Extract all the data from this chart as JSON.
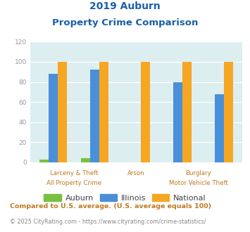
{
  "title_line1": "2019 Auburn",
  "title_line2": "Property Crime Comparison",
  "categories": [
    "All Property Crime",
    "Larceny & Theft",
    "Arson",
    "Burglary",
    "Motor Vehicle Theft"
  ],
  "auburn": [
    3,
    4,
    0,
    0,
    0
  ],
  "illinois": [
    88,
    92,
    0,
    80,
    68
  ],
  "national": [
    100,
    100,
    100,
    100,
    100
  ],
  "auburn_color": "#78c041",
  "illinois_color": "#4a90d9",
  "national_color": "#f5a623",
  "bg_color": "#ddeef0",
  "ylim": [
    0,
    120
  ],
  "yticks": [
    0,
    20,
    40,
    60,
    80,
    100,
    120
  ],
  "bar_width": 0.22,
  "title_color": "#1a5fa8",
  "xlabel_color": "#c07820",
  "legend_text_color": "#444444",
  "footnote1": "Compared to U.S. average. (U.S. average equals 100)",
  "footnote2": "© 2025 CityRating.com - https://www.cityrating.com/crime-statistics/",
  "footnote1_color": "#c07820",
  "footnote2_color": "#888888",
  "footnote2_url_color": "#4a90d9",
  "ytick_color": "#999999"
}
